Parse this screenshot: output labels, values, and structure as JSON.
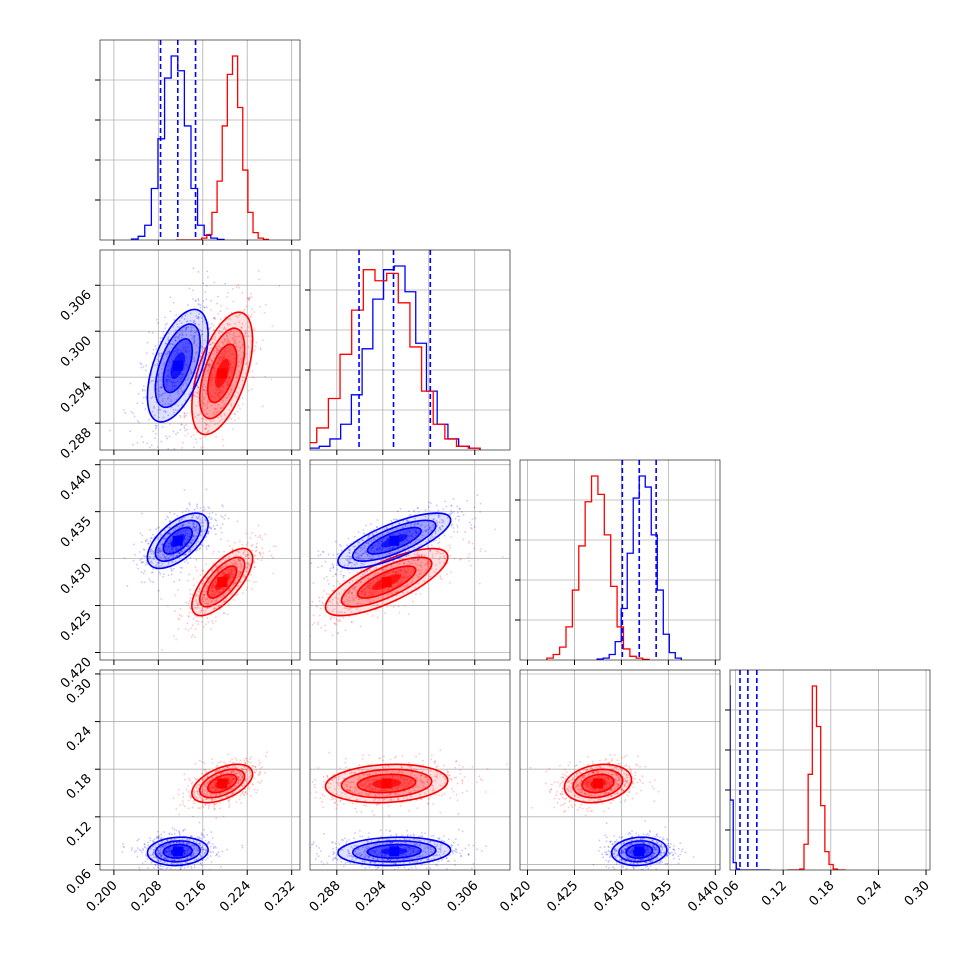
{
  "chart_data": {
    "type": "corner",
    "series": [
      {
        "name": "",
        "color": "#0000ff"
      },
      {
        "name": "",
        "color": "#ff0000"
      }
    ],
    "parameters": [
      {
        "ticks": [
          "0.200",
          "0.208",
          "0.216",
          "0.224",
          "0.232"
        ],
        "range": [
          0.1975,
          0.2335
        ]
      },
      {
        "ticks": [
          "0.288",
          "0.294",
          "0.300",
          "0.306"
        ],
        "range": [
          0.2845,
          0.3106
        ]
      },
      {
        "ticks": [
          "0.420",
          "0.425",
          "0.430",
          "0.435",
          "0.440"
        ],
        "range": [
          0.4192,
          0.4405
        ]
      },
      {
        "ticks": [
          "0.06",
          "0.12",
          "0.18",
          "0.24",
          "0.30"
        ],
        "range": [
          0.053,
          0.305
        ]
      }
    ],
    "quantiles_blue": [
      [
        0.2084,
        0.2115,
        0.2147
      ],
      [
        0.2909,
        0.2954,
        0.3002
      ],
      [
        0.4301,
        0.4319,
        0.4337
      ],
      [
        0.0656,
        0.0755,
        0.0868
      ]
    ],
    "histograms": {
      "blue": [
        [
          0.5,
          2,
          8,
          28,
          55,
          88,
          100,
          92,
          62,
          28,
          8,
          2.5,
          1,
          0.3
        ],
        [
          1,
          2,
          6,
          14,
          30,
          55,
          82,
          98,
          100,
          86,
          58,
          32,
          14,
          6,
          2,
          1
        ],
        [
          0.5,
          1,
          3,
          10,
          28,
          58,
          88,
          100,
          94,
          68,
          38,
          14,
          4,
          1
        ],
        [
          100,
          38,
          4,
          0.5,
          0,
          0,
          0,
          0,
          0,
          0,
          0,
          0,
          0,
          0
        ]
      ],
      "red": [
        [
          0,
          0,
          0,
          0,
          0,
          1,
          3,
          15,
          32,
          62,
          90,
          100,
          72,
          38,
          15,
          4,
          1,
          0.3
        ],
        [
          2,
          4,
          12,
          28,
          52,
          76,
          98,
          92,
          96,
          80,
          56,
          32,
          14,
          6,
          2,
          1
        ],
        [
          1,
          3,
          7,
          18,
          38,
          62,
          86,
          100,
          90,
          68,
          40,
          18,
          6,
          2,
          1,
          0.3
        ],
        [
          0,
          0,
          0,
          0.5,
          14,
          52,
          100,
          78,
          35,
          10,
          3,
          0.5,
          0,
          0
        ]
      ]
    },
    "covariance": {
      "blue": {
        "mean": [
          0.2115,
          0.2955,
          0.4319,
          0.0765
        ],
        "sd": [
          0.0026,
          0.0035,
          0.0014,
          0.0085
        ],
        "corr": [
          [
            1,
            0.55,
            0.6,
            0.1
          ],
          [
            0.55,
            1,
            0.75,
            0.1
          ],
          [
            0.6,
            0.75,
            1,
            0.1
          ],
          [
            0.1,
            0.1,
            0.1,
            1
          ]
        ]
      },
      "red": {
        "mean": [
          0.2195,
          0.2945,
          0.4275,
          0.162
        ],
        "sd": [
          0.0026,
          0.0038,
          0.0017,
          0.0115
        ],
        "corr": [
          [
            1,
            0.55,
            0.7,
            0.5
          ],
          [
            0.55,
            1,
            0.75,
            0.15
          ],
          [
            0.7,
            0.75,
            1,
            0.2
          ],
          [
            0.5,
            0.15,
            0.2,
            1
          ]
        ]
      }
    },
    "grid": true,
    "title": "",
    "xlabel": "",
    "ylabel": ""
  }
}
